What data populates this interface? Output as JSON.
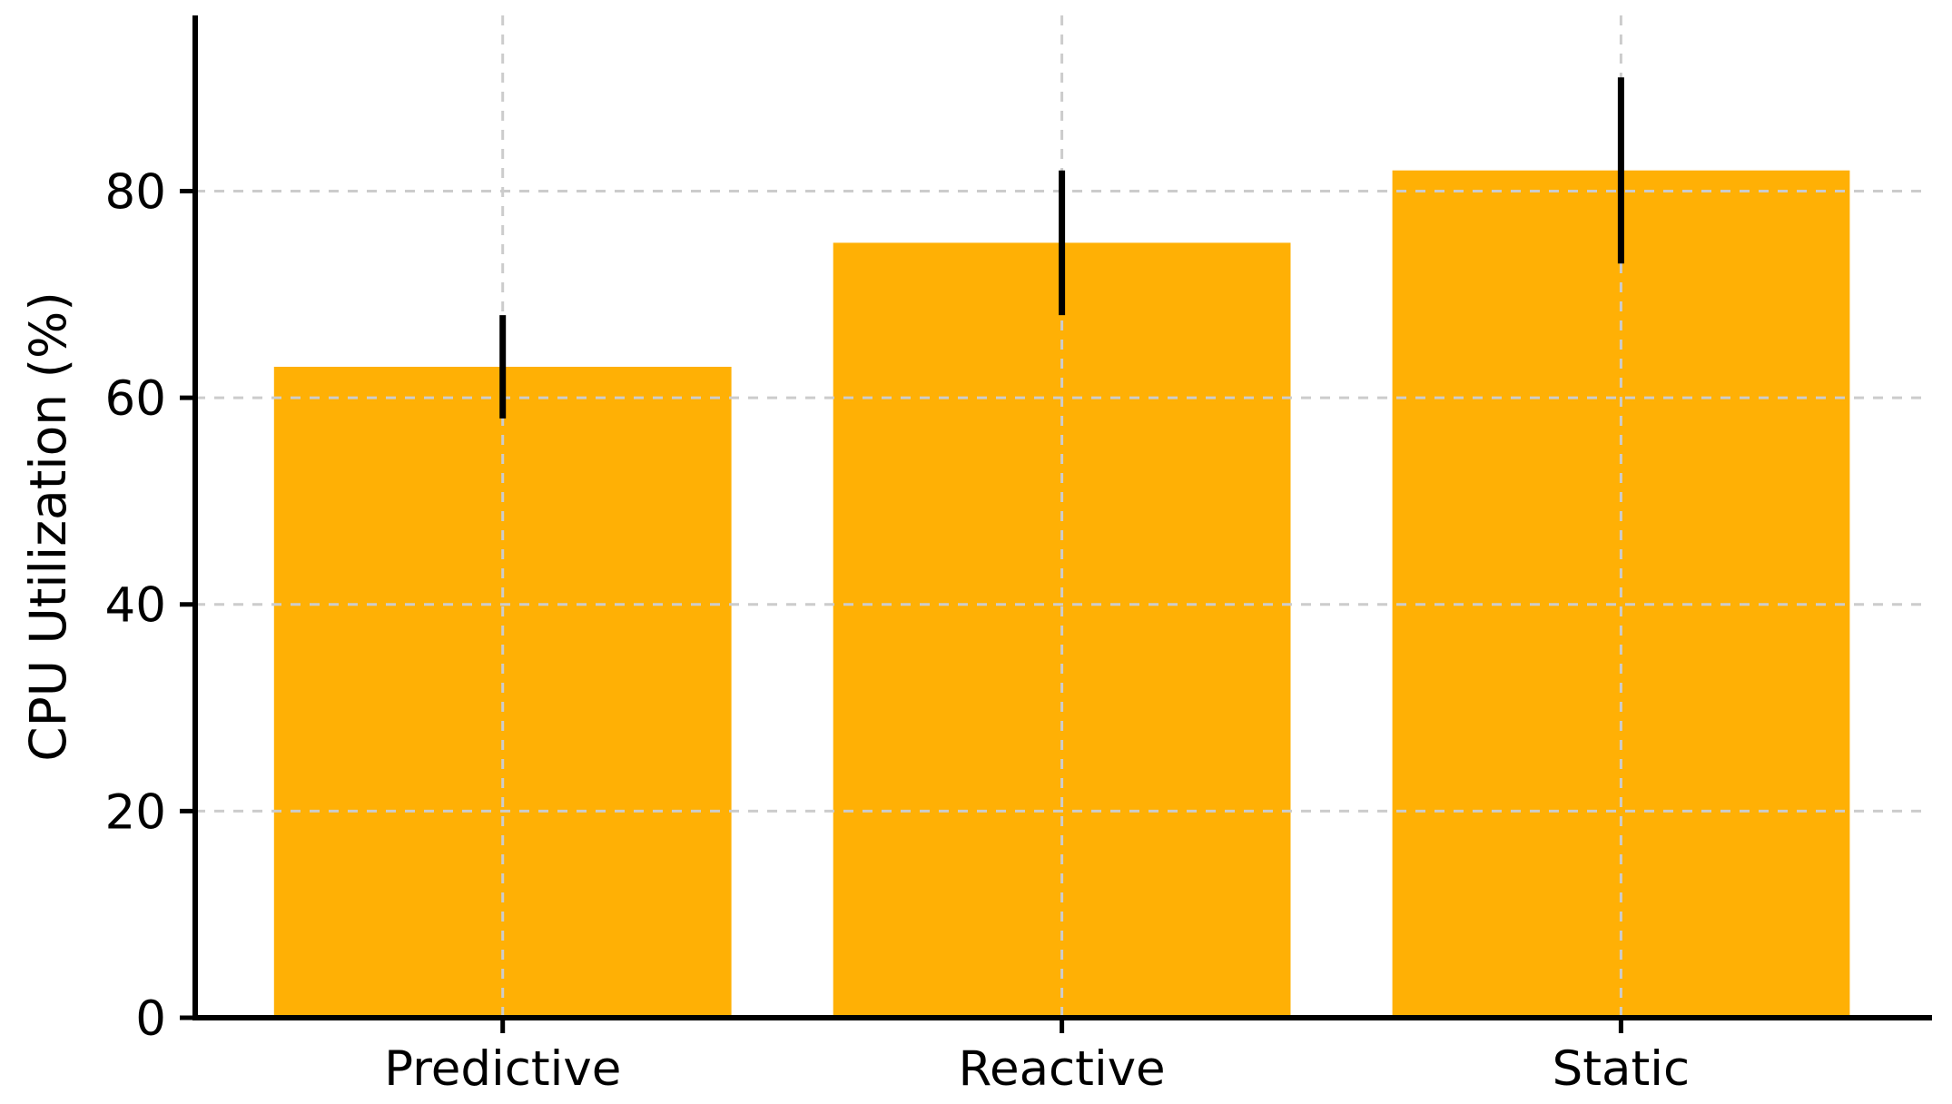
{
  "chart_data": {
    "type": "bar",
    "title": "",
    "categories": [
      "Predictive",
      "Reactive",
      "Static"
    ],
    "values": [
      63,
      75,
      82
    ],
    "errors": [
      5,
      7,
      9
    ],
    "xlabel": "",
    "ylabel": "CPU Utilization (%)",
    "yticks": [
      0,
      20,
      40,
      60,
      80
    ],
    "ylim": [
      0,
      97
    ],
    "bar_color": "#FFB005",
    "error_bar_color": "#000000",
    "grid_color": "#cccccc",
    "axis_color": "#000000",
    "background_color": "#ffffff",
    "grid": "dashed, horizontal and vertical, drawn above bars",
    "legend_position": "none"
  }
}
